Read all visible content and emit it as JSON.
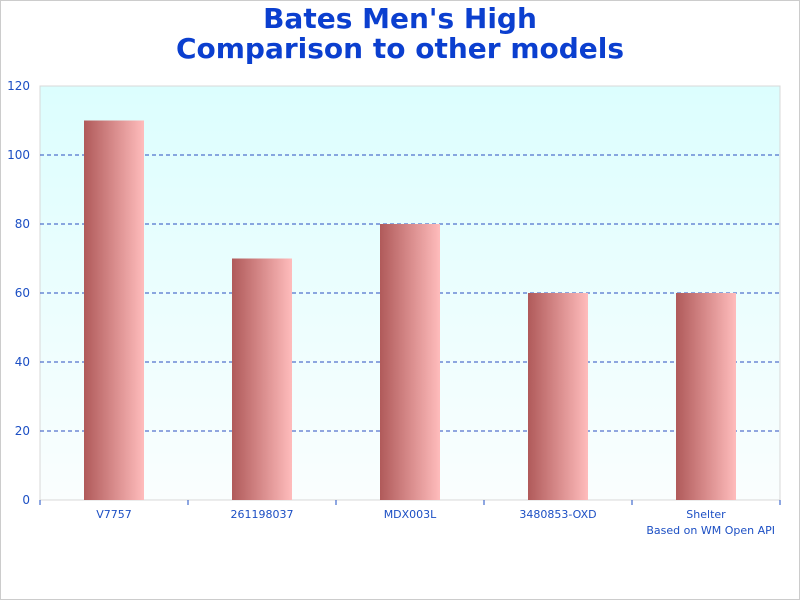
{
  "chart_data": {
    "type": "bar",
    "title": "Bates Men's High",
    "subtitle": "Comparison to other models",
    "categories": [
      "V7757",
      "261198037",
      "MDX003L",
      "3480853-OXD",
      "Shelter"
    ],
    "values": [
      110,
      70,
      80,
      60,
      60
    ],
    "xlabel": "",
    "ylabel": "",
    "ylim": [
      0,
      120
    ],
    "yticks": [
      0,
      20,
      40,
      60,
      80,
      100,
      120
    ],
    "grid": true,
    "legend": "none",
    "colors": {
      "bar_dark": "#b05a5a",
      "bar_light": "#ffbcbc",
      "plot_bg_top": "#dcfefe",
      "plot_bg_bottom": "#fafefe",
      "text": "#1c4fc4",
      "title": "#0b3fcf",
      "grid": "#2a4fc0"
    }
  },
  "footer": {
    "credit": "Based on WM Open API"
  }
}
